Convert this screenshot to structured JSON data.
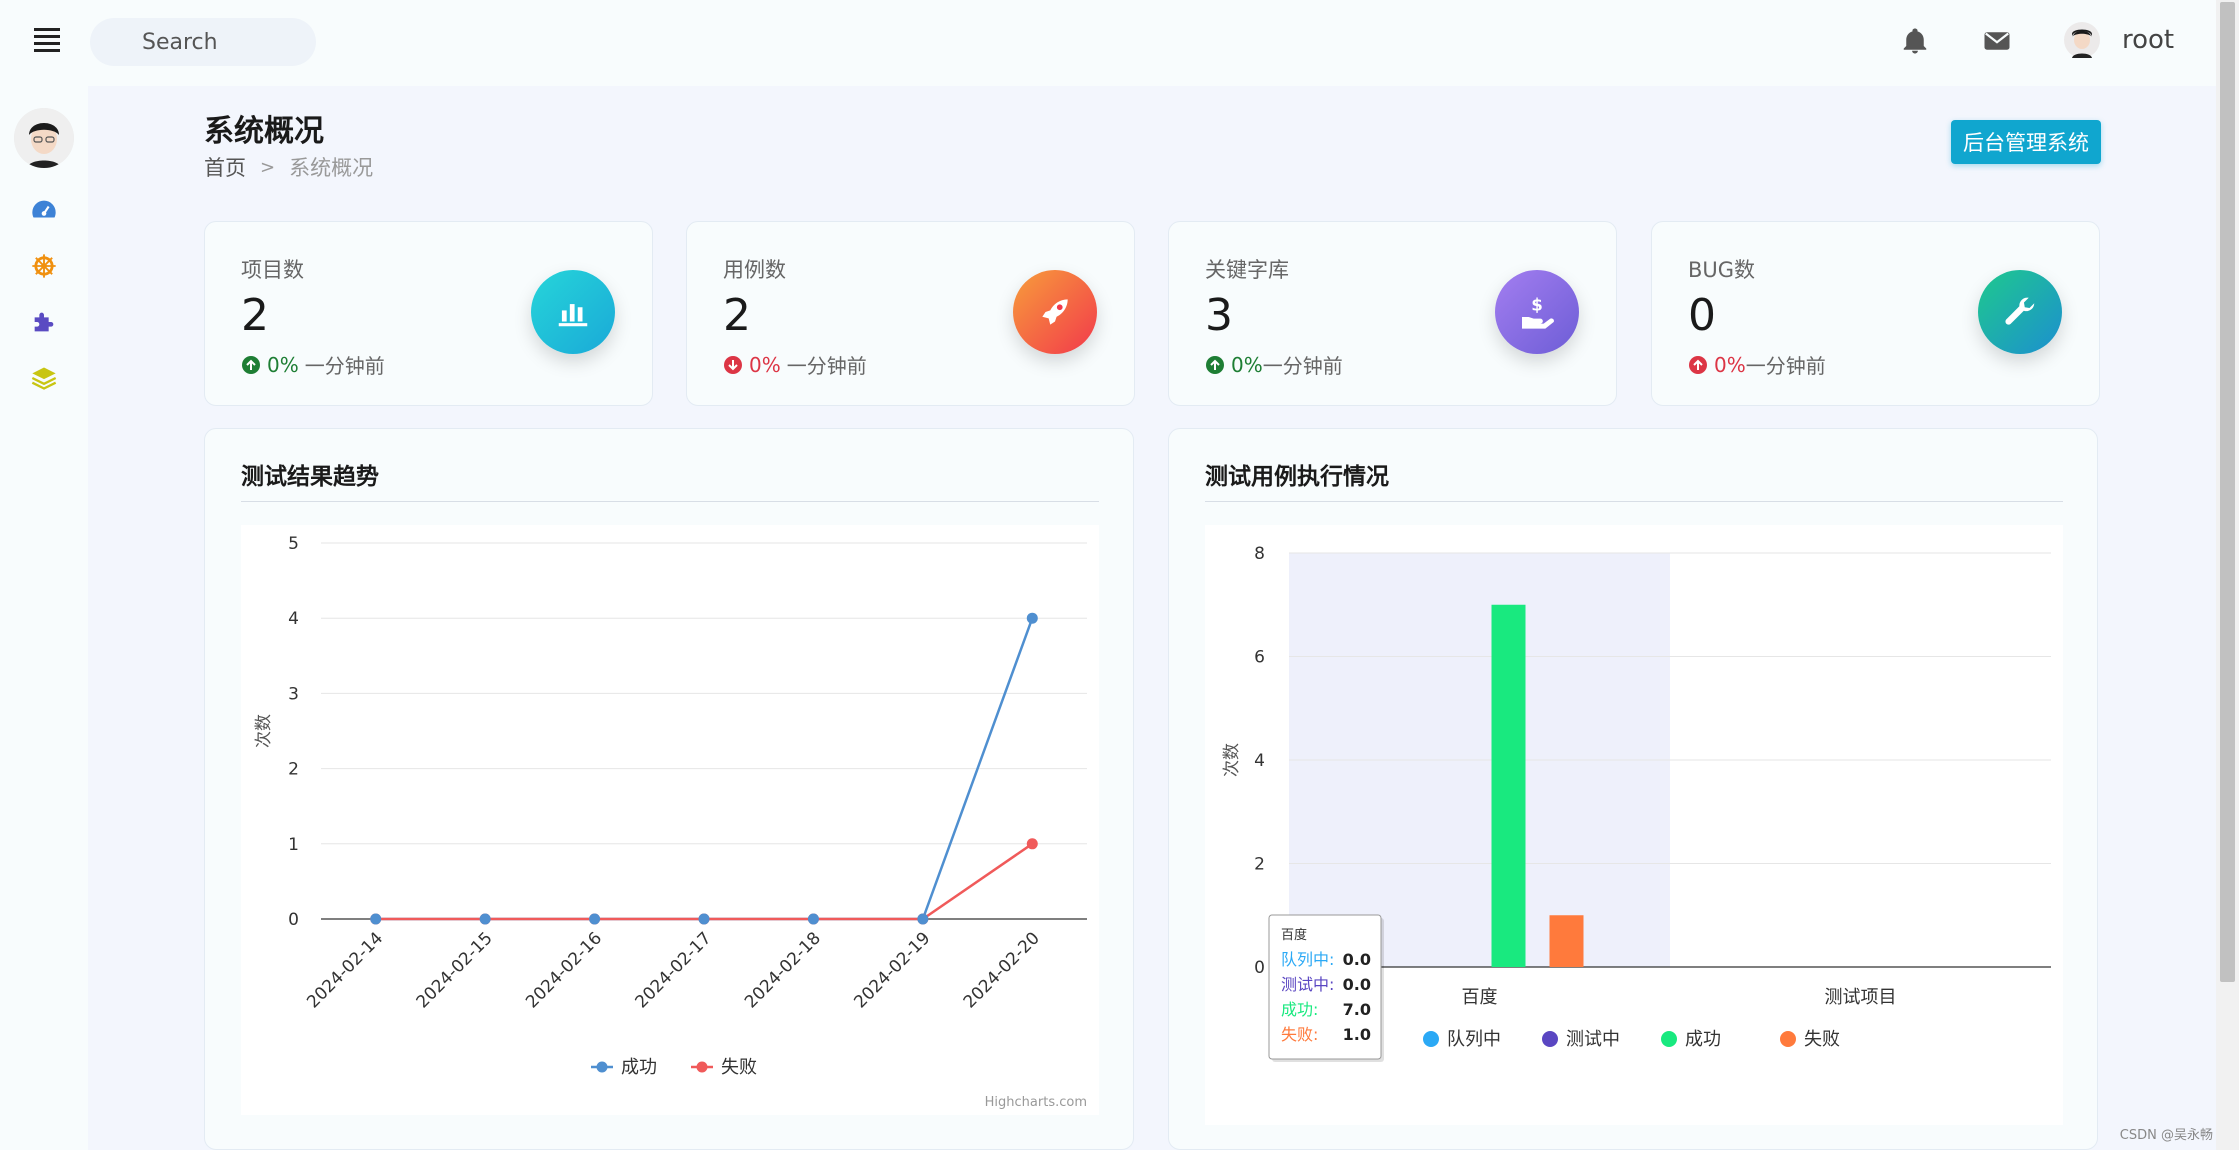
{
  "topbar": {
    "search_placeholder": "Search",
    "username": "root",
    "icons": [
      "menu-icon",
      "search-icon",
      "bell-icon",
      "envelope-icon",
      "avatar"
    ]
  },
  "sidebar": {
    "items": [
      "avatar",
      "dashboard-icon",
      "ship-wheel-icon",
      "puzzle-icon",
      "layers-icon"
    ]
  },
  "header": {
    "title": "系统概况",
    "breadcrumb_home": "首页",
    "breadcrumb_sep": ">",
    "breadcrumb_current": "系统概况",
    "admin_button": "后台管理系统"
  },
  "stats": [
    {
      "label": "项目数",
      "value": "2",
      "pct": "0%",
      "ago": "一分钟前",
      "trend": "up",
      "icon": "bar-chart-icon",
      "colors": [
        "#26d5d9",
        "#1aa9d8"
      ]
    },
    {
      "label": "用例数",
      "value": "2",
      "pct": "0%",
      "ago": "一分钟前",
      "trend": "down",
      "icon": "rocket-icon",
      "colors": [
        "#f79d3b",
        "#f2394b"
      ]
    },
    {
      "label": "关键字库",
      "value": "3",
      "pct": "0%",
      "ago": "一分钟前",
      "trend": "up",
      "icon": "hand-dollar-icon",
      "colors": [
        "#a37ef0",
        "#6d5dd6"
      ]
    },
    {
      "label": "BUG数",
      "value": "0",
      "pct": "0%",
      "ago": "一分钟前",
      "trend": "up-red",
      "icon": "wrench-icon",
      "colors": [
        "#1fc98d",
        "#1c8fd0"
      ]
    }
  ],
  "colors": {
    "green": "#1e7e34",
    "red": "#dc3545"
  },
  "chart_data": [
    {
      "type": "line",
      "title": "测试结果趋势",
      "ylabel": "次数",
      "xlabel": "",
      "ylim": [
        0,
        5
      ],
      "yticks": [
        0,
        1,
        2,
        3,
        4,
        5
      ],
      "categories": [
        "2024-02-14",
        "2024-02-15",
        "2024-02-16",
        "2024-02-17",
        "2024-02-18",
        "2024-02-19",
        "2024-02-20"
      ],
      "series": [
        {
          "name": "成功",
          "color": "#4f8fd0",
          "values": [
            0,
            0,
            0,
            0,
            0,
            0,
            4
          ]
        },
        {
          "name": "失败",
          "color": "#f05a5a",
          "values": [
            0,
            0,
            0,
            0,
            0,
            0,
            1
          ]
        }
      ],
      "legend": "bottom",
      "credit": "Highcharts.com"
    },
    {
      "type": "bar",
      "title": "测试用例执行情况",
      "ylabel": "次数",
      "xlabel": "",
      "ylim": [
        0,
        8
      ],
      "yticks": [
        0,
        2,
        4,
        6,
        8
      ],
      "categories": [
        "百度",
        "测试项目"
      ],
      "series": [
        {
          "name": "队列中",
          "color": "#2ba9f5",
          "values": [
            0,
            0
          ]
        },
        {
          "name": "测试中",
          "color": "#5a46c2",
          "values": [
            0,
            0
          ]
        },
        {
          "name": "成功",
          "color": "#19e97f",
          "values": [
            7,
            0
          ]
        },
        {
          "name": "失败",
          "color": "#ff7a3c",
          "values": [
            1,
            0
          ]
        }
      ],
      "legend": "bottom",
      "tooltip": {
        "category": "百度",
        "rows": [
          {
            "name": "队列中:",
            "value": "0.0"
          },
          {
            "name": "测试中:",
            "value": "0.0"
          },
          {
            "name": "成功:",
            "value": "7.0"
          },
          {
            "name": "失败:",
            "value": "1.0"
          }
        ]
      }
    }
  ],
  "watermark": "CSDN @吴永畅"
}
